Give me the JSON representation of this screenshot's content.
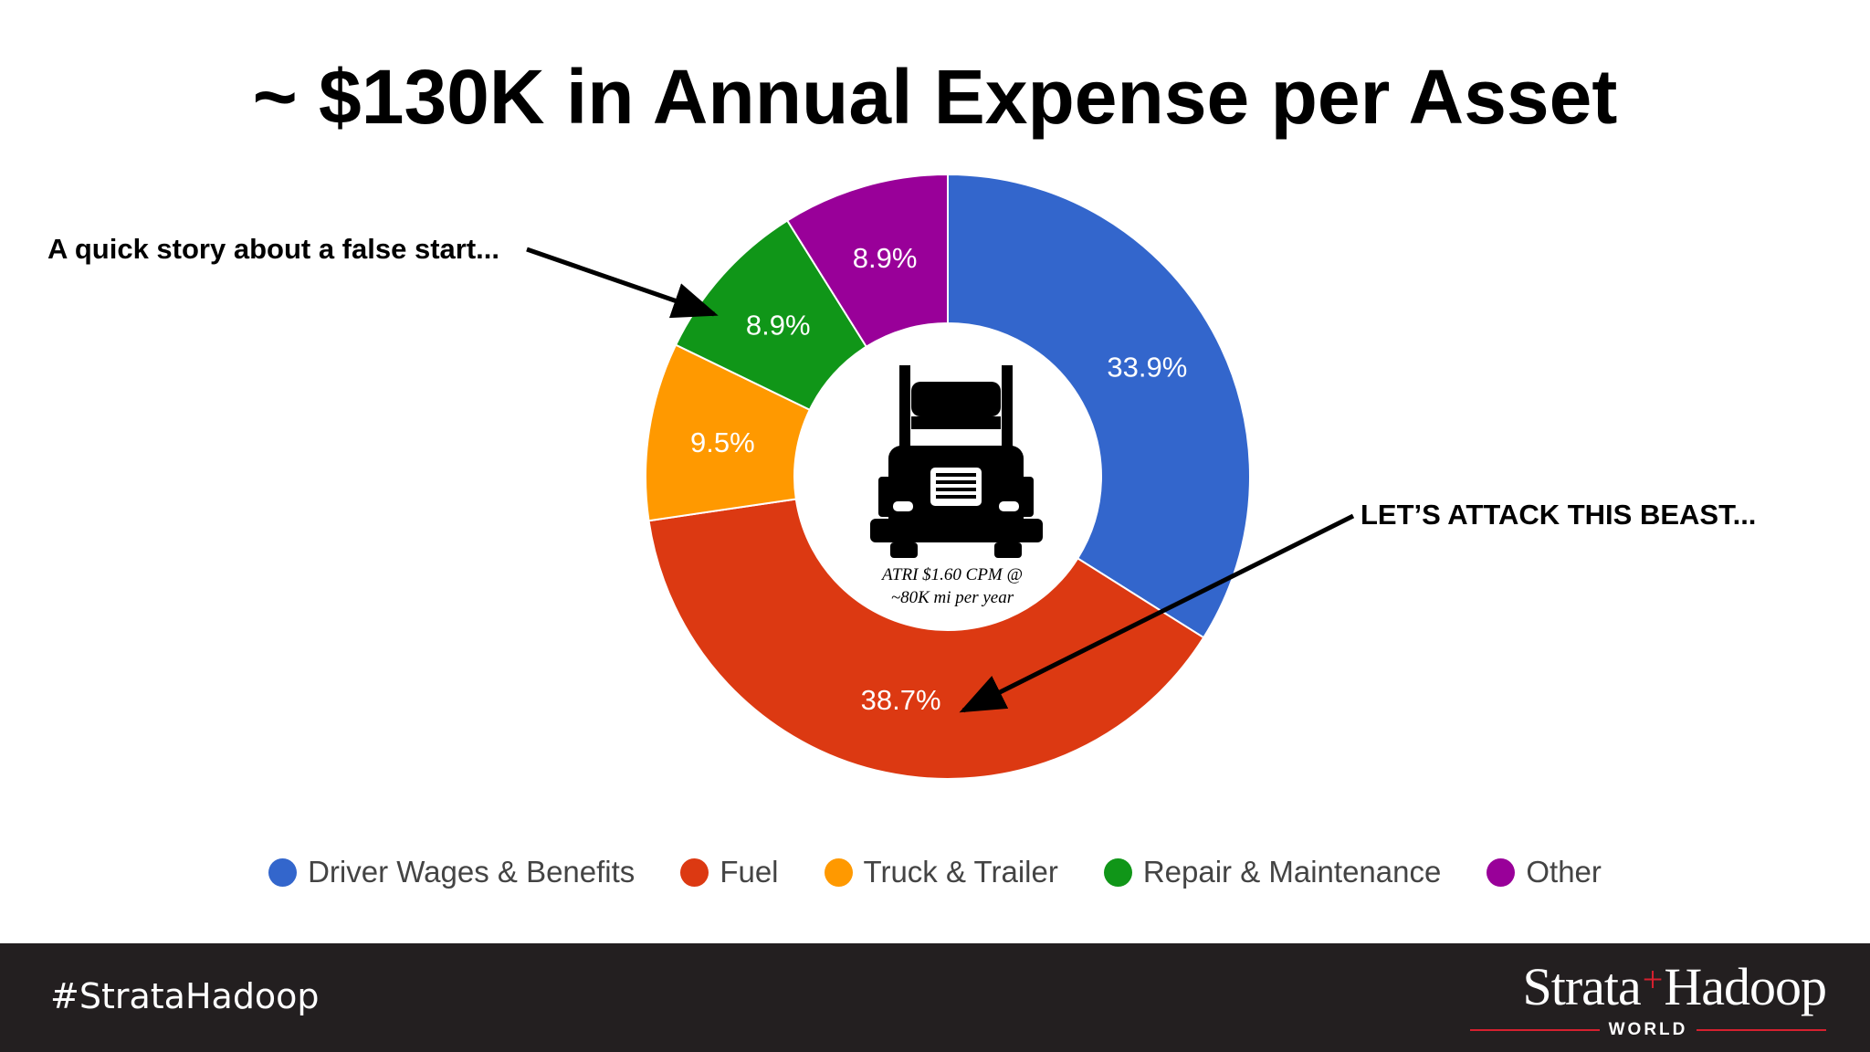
{
  "slide": {
    "title": "~ $130K in Annual Expense per Asset",
    "annotation_left": "A quick story about a false start...",
    "annotation_right": "LET’S ATTACK THIS BEAST...",
    "center_note_line1": "ATRI $1.60 CPM @",
    "center_note_line2": "~80K mi per year",
    "center_icon": "semi-truck-icon"
  },
  "chart_data": {
    "type": "pie",
    "donut": true,
    "title": "",
    "slices": [
      {
        "label": "Driver Wages & Benefits",
        "value": 33.9,
        "display": "33.9%",
        "color": "#3366cc"
      },
      {
        "label": "Fuel",
        "value": 38.7,
        "display": "38.7%",
        "color": "#dc3912"
      },
      {
        "label": "Truck & Trailer",
        "value": 9.5,
        "display": "9.5%",
        "color": "#ff9900"
      },
      {
        "label": "Repair & Maintenance",
        "value": 8.9,
        "display": "8.9%",
        "color": "#109618"
      },
      {
        "label": "Other",
        "value": 8.9,
        "display": "8.9%",
        "color": "#990099"
      }
    ],
    "legend_position": "bottom"
  },
  "footer": {
    "hashtag": "#StrataHadoop",
    "brand_left": "Strata",
    "brand_plus": "+",
    "brand_right": "Hadoop",
    "brand_sub": "WORLD"
  }
}
